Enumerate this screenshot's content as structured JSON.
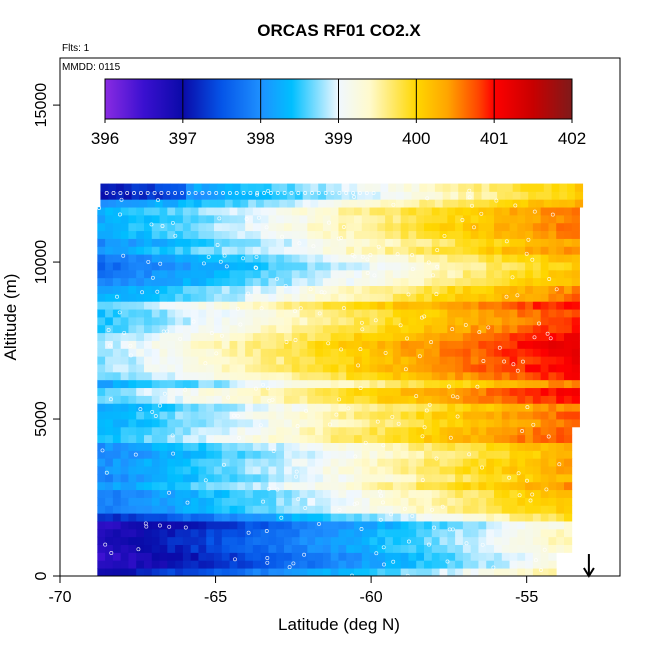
{
  "chart_data": {
    "type": "heatmap",
    "title": "ORCAS RF01 CO2.X",
    "notes": [
      "Flts: 1",
      "MMDD: 0115"
    ],
    "xlabel": "Latitude (deg N)",
    "ylabel": "Altitude (m)",
    "xlim": [
      -70,
      -52
    ],
    "ylim": [
      0,
      16500
    ],
    "xticks": [
      -70,
      -65,
      -60,
      -55
    ],
    "yticks": [
      0,
      5000,
      10000,
      15000
    ],
    "colorbar": {
      "range": [
        396,
        402
      ],
      "ticks": [
        396,
        397,
        398,
        399,
        400,
        401,
        402
      ],
      "stops": [
        {
          "value": 396.0,
          "color": "#8a2be2"
        },
        {
          "value": 396.5,
          "color": "#3a10d0"
        },
        {
          "value": 397.0,
          "color": "#0a0aa8"
        },
        {
          "value": 397.5,
          "color": "#0555e8"
        },
        {
          "value": 398.0,
          "color": "#1e90ff"
        },
        {
          "value": 398.4,
          "color": "#00bfff"
        },
        {
          "value": 399.0,
          "color": "#f0f8ff"
        },
        {
          "value": 399.4,
          "color": "#fffacd"
        },
        {
          "value": 400.0,
          "color": "#ffd700"
        },
        {
          "value": 400.4,
          "color": "#ffa500"
        },
        {
          "value": 400.8,
          "color": "#ff4500"
        },
        {
          "value": 401.0,
          "color": "#ff0000"
        },
        {
          "value": 401.5,
          "color": "#c80000"
        },
        {
          "value": 402.0,
          "color": "#7f1a1a"
        }
      ]
    },
    "data_extent": {
      "lat_min": -68.8,
      "lat_max": -53.3,
      "alt_min": 0,
      "alt_max": 12300
    },
    "arrow_marker": {
      "lat": -53.0,
      "alt_from": 700,
      "alt_to": 0
    },
    "profile": [
      {
        "alt": 0,
        "value": 398.3
      },
      {
        "alt": 500,
        "value": 398.2
      },
      {
        "alt": 1000,
        "value": 398.4
      },
      {
        "alt": 1500,
        "value": 398.3
      },
      {
        "alt": 2000,
        "value": 398.7
      },
      {
        "alt": 2500,
        "value": 398.8
      },
      {
        "alt": 3000,
        "value": 399.1
      },
      {
        "alt": 3500,
        "value": 399.0
      },
      {
        "alt": 4000,
        "value": 399.2
      },
      {
        "alt": 4500,
        "value": 399.5
      },
      {
        "alt": 5000,
        "value": 399.4
      },
      {
        "alt": 5500,
        "value": 399.6
      },
      {
        "alt": 6000,
        "value": 399.5
      },
      {
        "alt": 6500,
        "value": 399.6
      },
      {
        "alt": 7000,
        "value": 399.8
      },
      {
        "alt": 7500,
        "value": 399.9
      },
      {
        "alt": 8000,
        "value": 399.7
      },
      {
        "alt": 8500,
        "value": 399.6
      },
      {
        "alt": 9000,
        "value": 399.3
      },
      {
        "alt": 9500,
        "value": 399.0
      },
      {
        "alt": 10000,
        "value": 398.9
      },
      {
        "alt": 10500,
        "value": 399.3
      },
      {
        "alt": 11000,
        "value": 399.5
      },
      {
        "alt": 11500,
        "value": 399.4
      },
      {
        "alt": 12000,
        "value": 398.9
      }
    ],
    "latitude_gradient": {
      "lat_start": -68.8,
      "lat_end": -53.3,
      "offset_start": -1.1,
      "offset_end": 1.35
    }
  }
}
